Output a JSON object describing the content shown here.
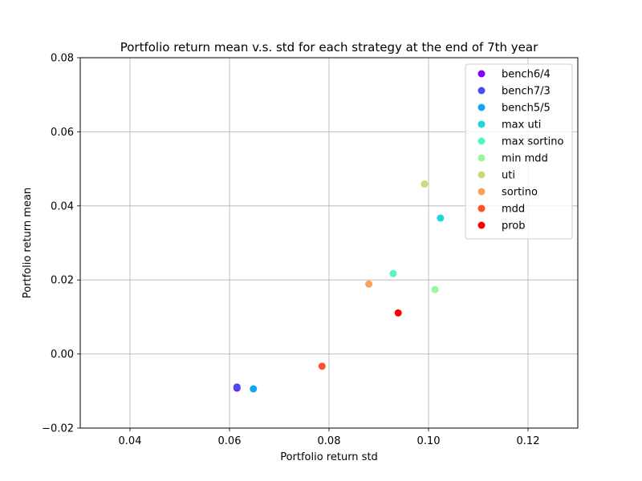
{
  "chart_data": {
    "type": "scatter",
    "title": "Portfolio return mean v.s. std for each strategy at the end of 7th year",
    "xlabel": "Portfolio return std",
    "ylabel": "Portfolio return mean",
    "xlim": [
      0.03,
      0.13
    ],
    "ylim": [
      -0.02,
      0.08
    ],
    "x_ticks": [
      0.04,
      0.06,
      0.08,
      0.1,
      0.12
    ],
    "x_tick_labels": [
      "0.04",
      "0.06",
      "0.08",
      "0.10",
      "0.12"
    ],
    "y_ticks": [
      -0.02,
      0.0,
      0.02,
      0.04,
      0.06,
      0.08
    ],
    "y_tick_labels": [
      "−0.02",
      "0.00",
      "0.02",
      "0.04",
      "0.06",
      "0.08"
    ],
    "grid": true,
    "legend_position": "top-right",
    "series": [
      {
        "name": "bench6/4",
        "color": "#8000ff",
        "x": [
          0.0615
        ],
        "y": [
          -0.0092
        ]
      },
      {
        "name": "bench7/3",
        "color": "#4a4df6",
        "x": [
          0.0615
        ],
        "y": [
          -0.0089
        ]
      },
      {
        "name": "bench5/5",
        "color": "#12a4ee",
        "x": [
          0.0648
        ],
        "y": [
          -0.0094
        ]
      },
      {
        "name": "max uti",
        "color": "#1dd7d8",
        "x": [
          0.1024
        ],
        "y": [
          0.0367
        ]
      },
      {
        "name": "max sortino",
        "color": "#54f8c0",
        "x": [
          0.0929
        ],
        "y": [
          0.0217
        ]
      },
      {
        "name": "min mdd",
        "color": "#9cf79a",
        "x": [
          0.1013
        ],
        "y": [
          0.0174
        ]
      },
      {
        "name": "uti",
        "color": "#d0d879",
        "x": [
          0.0992
        ],
        "y": [
          0.0459
        ]
      },
      {
        "name": "sortino",
        "color": "#ffa256",
        "x": [
          0.088
        ],
        "y": [
          0.0189
        ]
      },
      {
        "name": "mdd",
        "color": "#ff4e2a",
        "x": [
          0.0786
        ],
        "y": [
          -0.0033
        ]
      },
      {
        "name": "prob",
        "color": "#ff0000",
        "x": [
          0.0939
        ],
        "y": [
          0.0111
        ]
      }
    ]
  }
}
